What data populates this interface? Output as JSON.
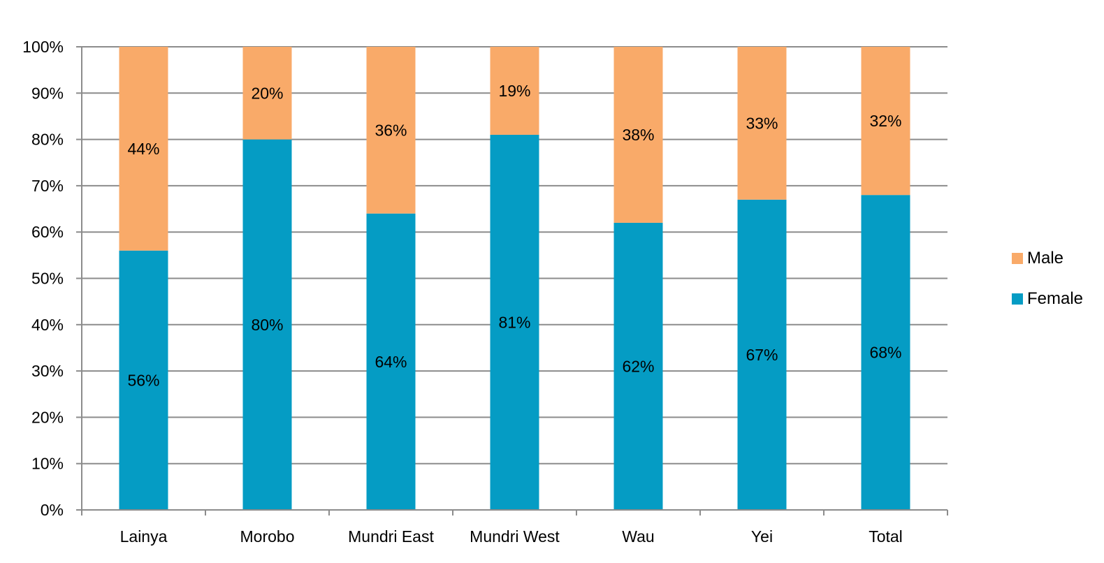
{
  "chart_data": {
    "type": "bar",
    "stacked": true,
    "categories": [
      "Lainya",
      "Morobo",
      "Mundri East",
      "Mundri West",
      "Wau",
      "Yei",
      "Total"
    ],
    "series": [
      {
        "name": "Female",
        "color": "#059cc4",
        "values": [
          56,
          80,
          64,
          81,
          62,
          67,
          68
        ],
        "labels": [
          "56%",
          "80%",
          "64%",
          "81%",
          "62%",
          "67%",
          "68%"
        ]
      },
      {
        "name": "Male",
        "color": "#f9aa69",
        "values": [
          44,
          20,
          36,
          19,
          38,
          33,
          32
        ],
        "labels": [
          "44%",
          "20%",
          "36%",
          "19%",
          "38%",
          "33%",
          "32%"
        ]
      }
    ],
    "ylim": [
      0,
      100
    ],
    "yticks": [
      0,
      10,
      20,
      30,
      40,
      50,
      60,
      70,
      80,
      90,
      100
    ],
    "ytick_labels": [
      "0%",
      "10%",
      "20%",
      "30%",
      "40%",
      "50%",
      "60%",
      "70%",
      "80%",
      "90%",
      "100%"
    ],
    "grid": true,
    "legend_position": "right"
  },
  "legend": {
    "male_label": "Male",
    "female_label": "Female"
  }
}
